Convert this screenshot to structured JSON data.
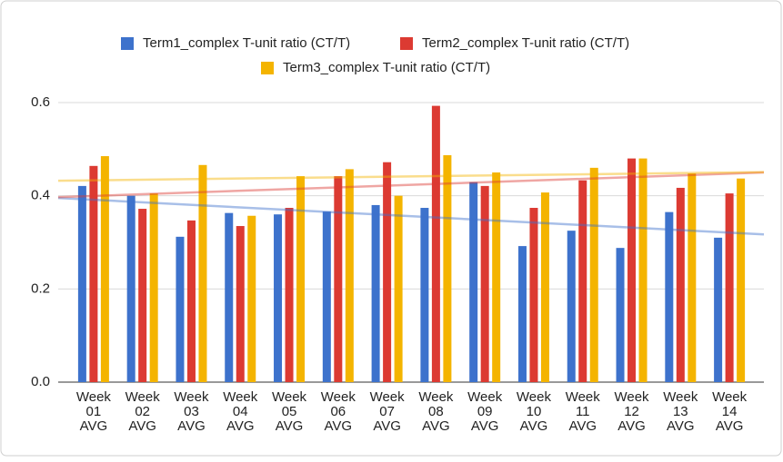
{
  "chart_data": {
    "type": "bar",
    "categories": [
      [
        "Week",
        "01",
        "AVG"
      ],
      [
        "Week",
        "02",
        "AVG"
      ],
      [
        "Week",
        "03",
        "AVG"
      ],
      [
        "Week",
        "04",
        "AVG"
      ],
      [
        "Week",
        "05",
        "AVG"
      ],
      [
        "Week",
        "06",
        "AVG"
      ],
      [
        "Week",
        "07",
        "AVG"
      ],
      [
        "Week",
        "08",
        "AVG"
      ],
      [
        "Week",
        "09",
        "AVG"
      ],
      [
        "Week",
        "10",
        "AVG"
      ],
      [
        "Week",
        "11",
        "AVG"
      ],
      [
        "Week",
        "12",
        "AVG"
      ],
      [
        "Week",
        "13",
        "AVG"
      ],
      [
        "Week",
        "14",
        "AVG"
      ]
    ],
    "series": [
      {
        "name": "Term1_complex T-unit ratio (CT/T)",
        "color": "#3d72cc",
        "values": [
          0.421,
          0.4,
          0.312,
          0.363,
          0.36,
          0.366,
          0.38,
          0.374,
          0.429,
          0.292,
          0.325,
          0.288,
          0.365,
          0.31
        ]
      },
      {
        "name": "Term2_complex T-unit ratio (CT/T)",
        "color": "#dc3a32",
        "values": [
          0.464,
          0.372,
          0.347,
          0.335,
          0.374,
          0.442,
          0.472,
          0.593,
          0.421,
          0.374,
          0.433,
          0.48,
          0.417,
          0.405
        ]
      },
      {
        "name": "Term3_complex T-unit ratio (CT/T)",
        "color": "#f4b400",
        "values": [
          0.485,
          0.405,
          0.466,
          0.357,
          0.442,
          0.457,
          0.4,
          0.487,
          0.45,
          0.407,
          0.46,
          0.48,
          0.448,
          0.437
        ]
      }
    ],
    "ylim": [
      0,
      0.6
    ],
    "yticks": [
      {
        "value": 0,
        "label": "0.0"
      },
      0.2,
      0.4,
      0.6
    ],
    "grid": true,
    "trendline": true,
    "legend": "top"
  }
}
